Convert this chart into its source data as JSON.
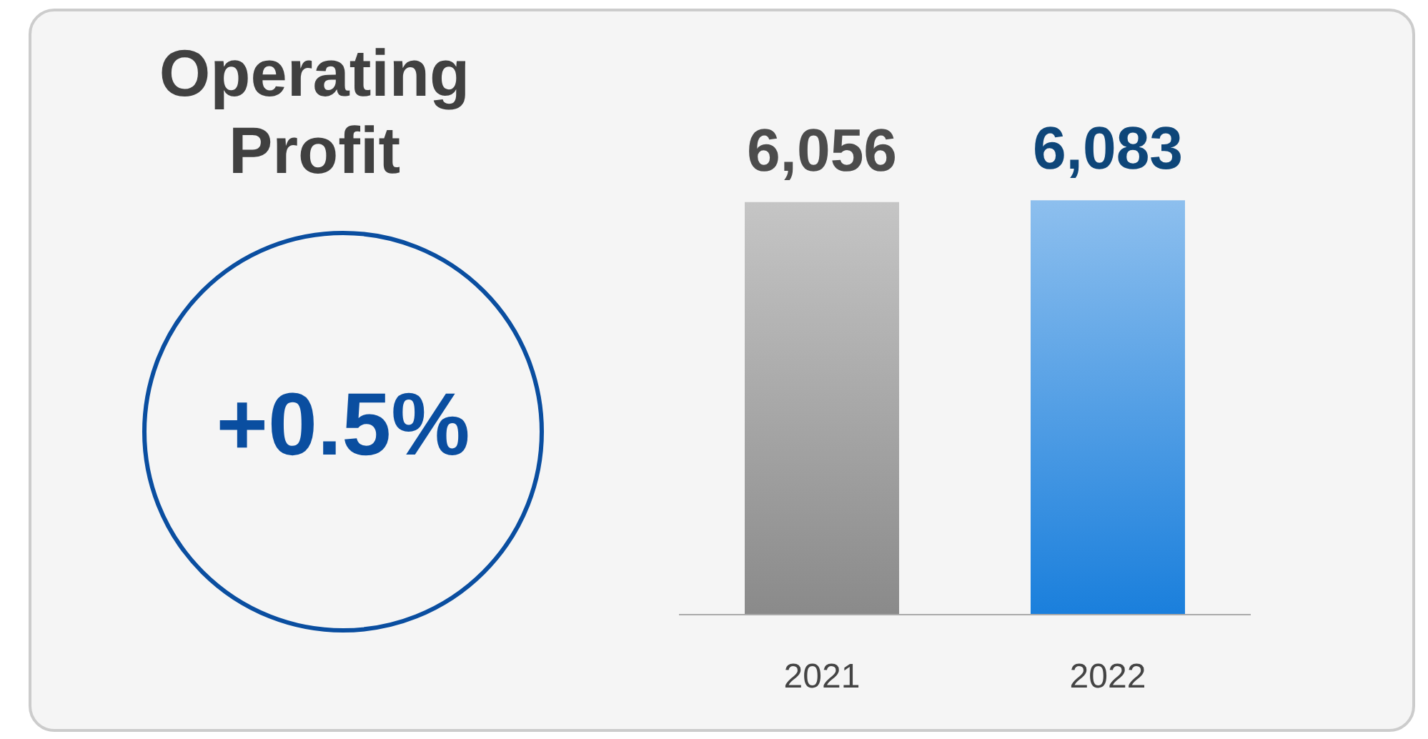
{
  "chart_data": {
    "type": "bar",
    "title": "Operating Profit",
    "categories": [
      "2021",
      "2022"
    ],
    "values": [
      6056,
      6083
    ],
    "colors": [
      "#8a8a8a",
      "#1a7fdc"
    ],
    "data_labels": true,
    "value_labels": [
      "6,056",
      "6,083"
    ],
    "annotations": [
      "+0.5%"
    ]
  }
}
